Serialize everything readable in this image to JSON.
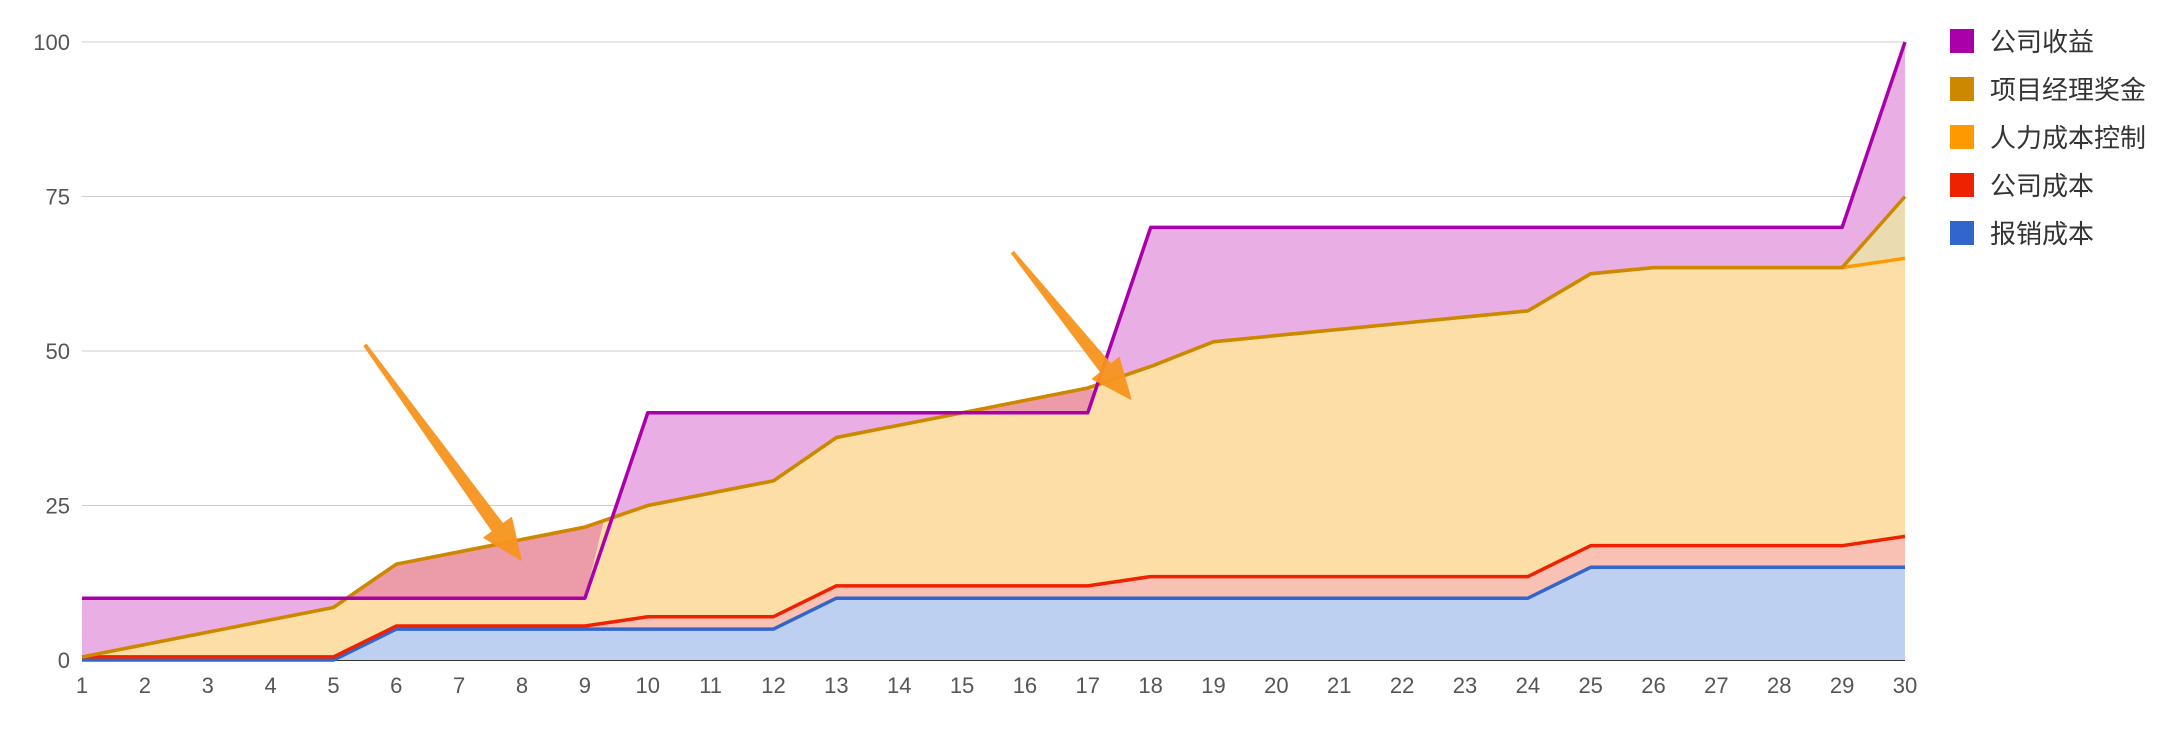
{
  "chart_data": {
    "type": "area",
    "x": [
      1,
      2,
      3,
      4,
      5,
      6,
      7,
      8,
      9,
      10,
      11,
      12,
      13,
      14,
      15,
      16,
      17,
      18,
      19,
      20,
      21,
      22,
      23,
      24,
      25,
      26,
      27,
      28,
      29,
      30
    ],
    "ylim": [
      0,
      100
    ],
    "yticks": [
      0,
      25,
      50,
      75,
      100
    ],
    "grid": true,
    "legend_position": "right",
    "series": [
      {
        "name": "公司收益",
        "color": "#aa00aa",
        "fill": "#e9aee4",
        "values": [
          10,
          10,
          10,
          10,
          10,
          10,
          10,
          10,
          10,
          40,
          40,
          40,
          40,
          40,
          40,
          40,
          40,
          70,
          70,
          70,
          70,
          70,
          70,
          70,
          70,
          70,
          70,
          70,
          70,
          100
        ]
      },
      {
        "name": "项目经理奖金",
        "color": "#cc8800",
        "fill": "#eadcb0",
        "values": [
          0.5,
          2.5,
          4.5,
          6.5,
          8.5,
          15.5,
          17.5,
          19.5,
          21.5,
          25,
          27,
          29,
          36,
          38,
          40,
          42,
          44,
          47.5,
          51.5,
          52.5,
          53.5,
          54.5,
          55.5,
          56.5,
          62.5,
          63.5,
          63.5,
          63.5,
          63.5,
          75
        ]
      },
      {
        "name": "人力成本控制",
        "color": "#ff9900",
        "fill": "#fddea6",
        "values": [
          0.5,
          2.5,
          4.5,
          6.5,
          8.5,
          15.5,
          17.5,
          19.5,
          21.5,
          25,
          27,
          29,
          36,
          38,
          40,
          42,
          44,
          47.5,
          51.5,
          52.5,
          53.5,
          54.5,
          55.5,
          56.5,
          62.5,
          63.5,
          63.5,
          63.5,
          63.5,
          65
        ]
      },
      {
        "name": "公司成本",
        "color": "#ee2200",
        "fill": "#f9c0b4",
        "values": [
          0.5,
          0.5,
          0.5,
          0.5,
          0.5,
          5.5,
          5.5,
          5.5,
          5.5,
          7,
          7,
          7,
          12,
          12,
          12,
          12,
          12,
          13.5,
          13.5,
          13.5,
          13.5,
          13.5,
          13.5,
          13.5,
          18.5,
          18.5,
          18.5,
          18.5,
          18.5,
          20
        ]
      },
      {
        "name": "报销成本",
        "color": "#3366cc",
        "fill": "#bdd0f1",
        "values": [
          0,
          0,
          0,
          0,
          0,
          5,
          5,
          5,
          5,
          5,
          5,
          5,
          10,
          10,
          10,
          10,
          10,
          10,
          10,
          10,
          10,
          10,
          10,
          10,
          15,
          15,
          15,
          15,
          15,
          15
        ]
      }
    ],
    "overlap_color": "#ec9ba8",
    "annotations": [
      {
        "kind": "arrow",
        "color": "#f7931e",
        "from": [
          5.5,
          51
        ],
        "to": [
          8,
          16
        ]
      },
      {
        "kind": "arrow",
        "color": "#f7931e",
        "from": [
          15.8,
          66
        ],
        "to": [
          17.7,
          42
        ]
      }
    ]
  }
}
